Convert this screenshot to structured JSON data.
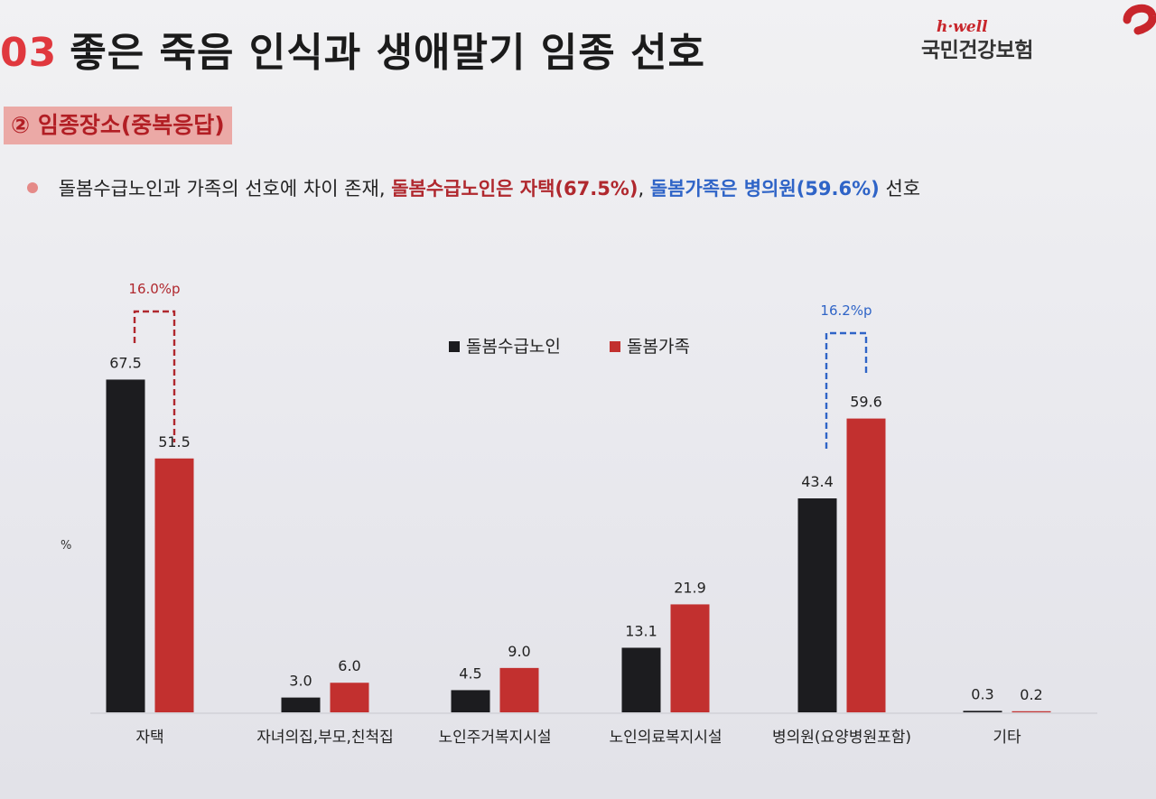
{
  "title": {
    "number": "03",
    "text": "좋은 죽음 인식과 생애말기 임종 선호"
  },
  "logo": {
    "brand": "h·well",
    "org": "국민건강보험"
  },
  "section": {
    "label": "② 임종장소(중복응답)"
  },
  "summary": {
    "prefix": "돌봄수급노인과 가족의 선호에 차이 존재,",
    "elderly_highlight": "돌봄수급노인은 자택(67.5%)",
    "separator": ",",
    "family_highlight": "돌봄가족은 병의원(59.6%)",
    "suffix": "선호"
  },
  "colors": {
    "elderly": "#1c1c1f",
    "family": "#c2302f",
    "accent_red": "#b0282e",
    "accent_blue": "#2f64c7"
  },
  "chart_data": {
    "type": "bar",
    "unit_label": "%",
    "categories": [
      "자택",
      "자녀의집,부모,친척집",
      "노인주거복지시설",
      "노인의료복지시설",
      "병의원(요양병원포함)",
      "기타"
    ],
    "series": [
      {
        "name": "돌봄수급노인",
        "values": [
          67.5,
          3.0,
          4.5,
          13.1,
          43.4,
          0.3
        ]
      },
      {
        "name": "돌봄가족",
        "values": [
          51.5,
          6.0,
          9.0,
          21.9,
          59.6,
          0.2
        ]
      }
    ],
    "value_labels": {
      "돌봄수급노인": [
        "67.5",
        "3.0",
        "4.5",
        "13.1",
        "43.4",
        "0.3"
      ],
      "돌봄가족": [
        "51.5",
        "6.0",
        "9.0",
        "21.9",
        "59.6",
        "0.2"
      ]
    },
    "ylim": [
      0,
      70
    ],
    "legend_position": "top-center",
    "annotations": [
      {
        "text": "16.0%p",
        "category": "자택",
        "color": "red"
      },
      {
        "text": "16.2%p",
        "category": "병의원(요양병원포함)",
        "color": "blue"
      }
    ]
  }
}
